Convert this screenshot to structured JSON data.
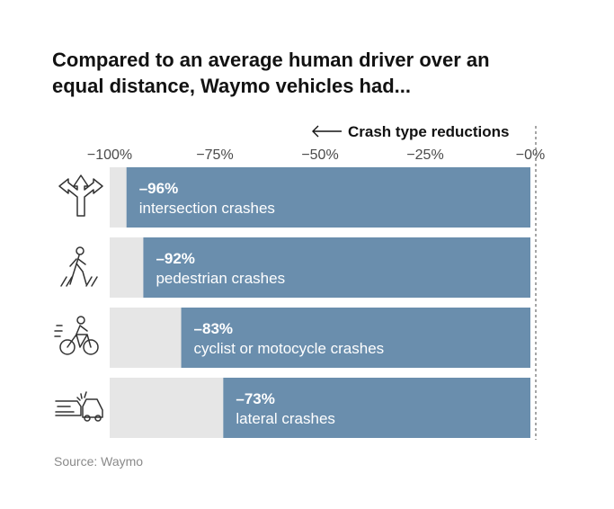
{
  "title_lines": [
    "Compared to an average human driver over an",
    "equal distance, Waymo vehicles had..."
  ],
  "source": "Source: Waymo",
  "chart_data": {
    "type": "bar",
    "orientation": "horizontal",
    "annotation": "Crash type reductions",
    "x_ticks": [
      "−100%",
      "−75%",
      "−50%",
      "−25%",
      "−0%"
    ],
    "x_tick_values": [
      -100,
      -75,
      -50,
      -25,
      0
    ],
    "xlim": [
      -100,
      0
    ],
    "categories": [
      "intersection crashes",
      "pedestrian crashes",
      "cyclist or motocycle crashes",
      "lateral crashes"
    ],
    "value_labels": [
      "–96%",
      "–92%",
      "–83%",
      "–73%"
    ],
    "values": [
      -96,
      -92,
      -83,
      -73
    ],
    "icons": [
      "intersection-arrows-icon",
      "pedestrian-icon",
      "cyclist-icon",
      "car-collision-icon"
    ],
    "colors": {
      "bar": "#6a8ead",
      "background_bar": "#e6e6e6"
    },
    "grid": false
  }
}
